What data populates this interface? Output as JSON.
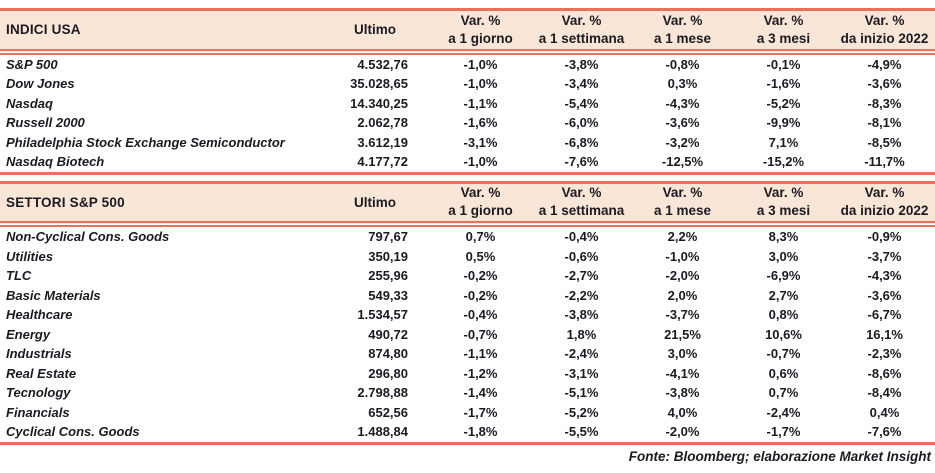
{
  "colors": {
    "accent_line": "#E8715C",
    "header_bg": "#FAE6D7",
    "text": "#1A1A22"
  },
  "tables": [
    {
      "title": "INDICI USA",
      "ultimo_label": "Ultimo",
      "var_headers": [
        {
          "line1": "Var. %",
          "line2": "a 1 giorno"
        },
        {
          "line1": "Var. %",
          "line2": "a 1 settimana"
        },
        {
          "line1": "Var. %",
          "line2": "a 1 mese"
        },
        {
          "line1": "Var. %",
          "line2": "a 3 mesi"
        },
        {
          "line1": "Var. %",
          "line2": "da inizio 2022"
        }
      ],
      "rows": [
        {
          "name": "S&P 500",
          "ultimo": "4.532,76",
          "changes": [
            "-1,0%",
            "-3,8%",
            "-0,8%",
            "-0,1%",
            "-4,9%"
          ]
        },
        {
          "name": "Dow Jones",
          "ultimo": "35.028,65",
          "changes": [
            "-1,0%",
            "-3,4%",
            "0,3%",
            "-1,6%",
            "-3,6%"
          ]
        },
        {
          "name": "Nasdaq",
          "ultimo": "14.340,25",
          "changes": [
            "-1,1%",
            "-5,4%",
            "-4,3%",
            "-5,2%",
            "-8,3%"
          ]
        },
        {
          "name": "Russell 2000",
          "ultimo": "2.062,78",
          "changes": [
            "-1,6%",
            "-6,0%",
            "-3,6%",
            "-9,9%",
            "-8,1%"
          ]
        },
        {
          "name": "Philadelphia Stock Exchange Semiconductor",
          "ultimo": "3.612,19",
          "changes": [
            "-3,1%",
            "-6,8%",
            "-3,2%",
            "7,1%",
            "-8,5%"
          ]
        },
        {
          "name": "Nasdaq Biotech",
          "ultimo": "4.177,72",
          "changes": [
            "-1,0%",
            "-7,6%",
            "-12,5%",
            "-15,2%",
            "-11,7%"
          ]
        }
      ]
    },
    {
      "title": "SETTORI S&P 500",
      "ultimo_label": "Ultimo",
      "var_headers": [
        {
          "line1": "Var. %",
          "line2": "a 1 giorno"
        },
        {
          "line1": "Var. %",
          "line2": "a 1 settimana"
        },
        {
          "line1": "Var. %",
          "line2": "a 1 mese"
        },
        {
          "line1": "Var. %",
          "line2": "a 3 mesi"
        },
        {
          "line1": "Var. %",
          "line2": "da inizio 2022"
        }
      ],
      "rows": [
        {
          "name": "Non-Cyclical Cons. Goods",
          "ultimo": "797,67",
          "changes": [
            "0,7%",
            "-0,4%",
            "2,2%",
            "8,3%",
            "-0,9%"
          ]
        },
        {
          "name": "Utilities",
          "ultimo": "350,19",
          "changes": [
            "0,5%",
            "-0,6%",
            "-1,0%",
            "3,0%",
            "-3,7%"
          ]
        },
        {
          "name": "TLC",
          "ultimo": "255,96",
          "changes": [
            "-0,2%",
            "-2,7%",
            "-2,0%",
            "-6,9%",
            "-4,3%"
          ]
        },
        {
          "name": "Basic Materials",
          "ultimo": "549,33",
          "changes": [
            "-0,2%",
            "-2,2%",
            "2,0%",
            "2,7%",
            "-3,6%"
          ]
        },
        {
          "name": "Healthcare",
          "ultimo": "1.534,57",
          "changes": [
            "-0,4%",
            "-3,8%",
            "-3,7%",
            "0,8%",
            "-6,7%"
          ]
        },
        {
          "name": "Energy",
          "ultimo": "490,72",
          "changes": [
            "-0,7%",
            "1,8%",
            "21,5%",
            "10,6%",
            "16,1%"
          ]
        },
        {
          "name": "Industrials",
          "ultimo": "874,80",
          "changes": [
            "-1,1%",
            "-2,4%",
            "3,0%",
            "-0,7%",
            "-2,3%"
          ]
        },
        {
          "name": "Real Estate",
          "ultimo": "296,80",
          "changes": [
            "-1,2%",
            "-3,1%",
            "-4,1%",
            "0,6%",
            "-8,6%"
          ]
        },
        {
          "name": "Tecnology",
          "ultimo": "2.798,88",
          "changes": [
            "-1,4%",
            "-5,1%",
            "-3,8%",
            "0,7%",
            "-8,4%"
          ]
        },
        {
          "name": "Financials",
          "ultimo": "652,56",
          "changes": [
            "-1,7%",
            "-5,2%",
            "4,0%",
            "-2,4%",
            "0,4%"
          ]
        },
        {
          "name": "Cyclical Cons. Goods",
          "ultimo": "1.488,84",
          "changes": [
            "-1,8%",
            "-5,5%",
            "-2,0%",
            "-1,7%",
            "-7,6%"
          ]
        }
      ]
    }
  ],
  "footer": {
    "source": "Fonte: Bloomberg; elaborazione Market Insight"
  }
}
